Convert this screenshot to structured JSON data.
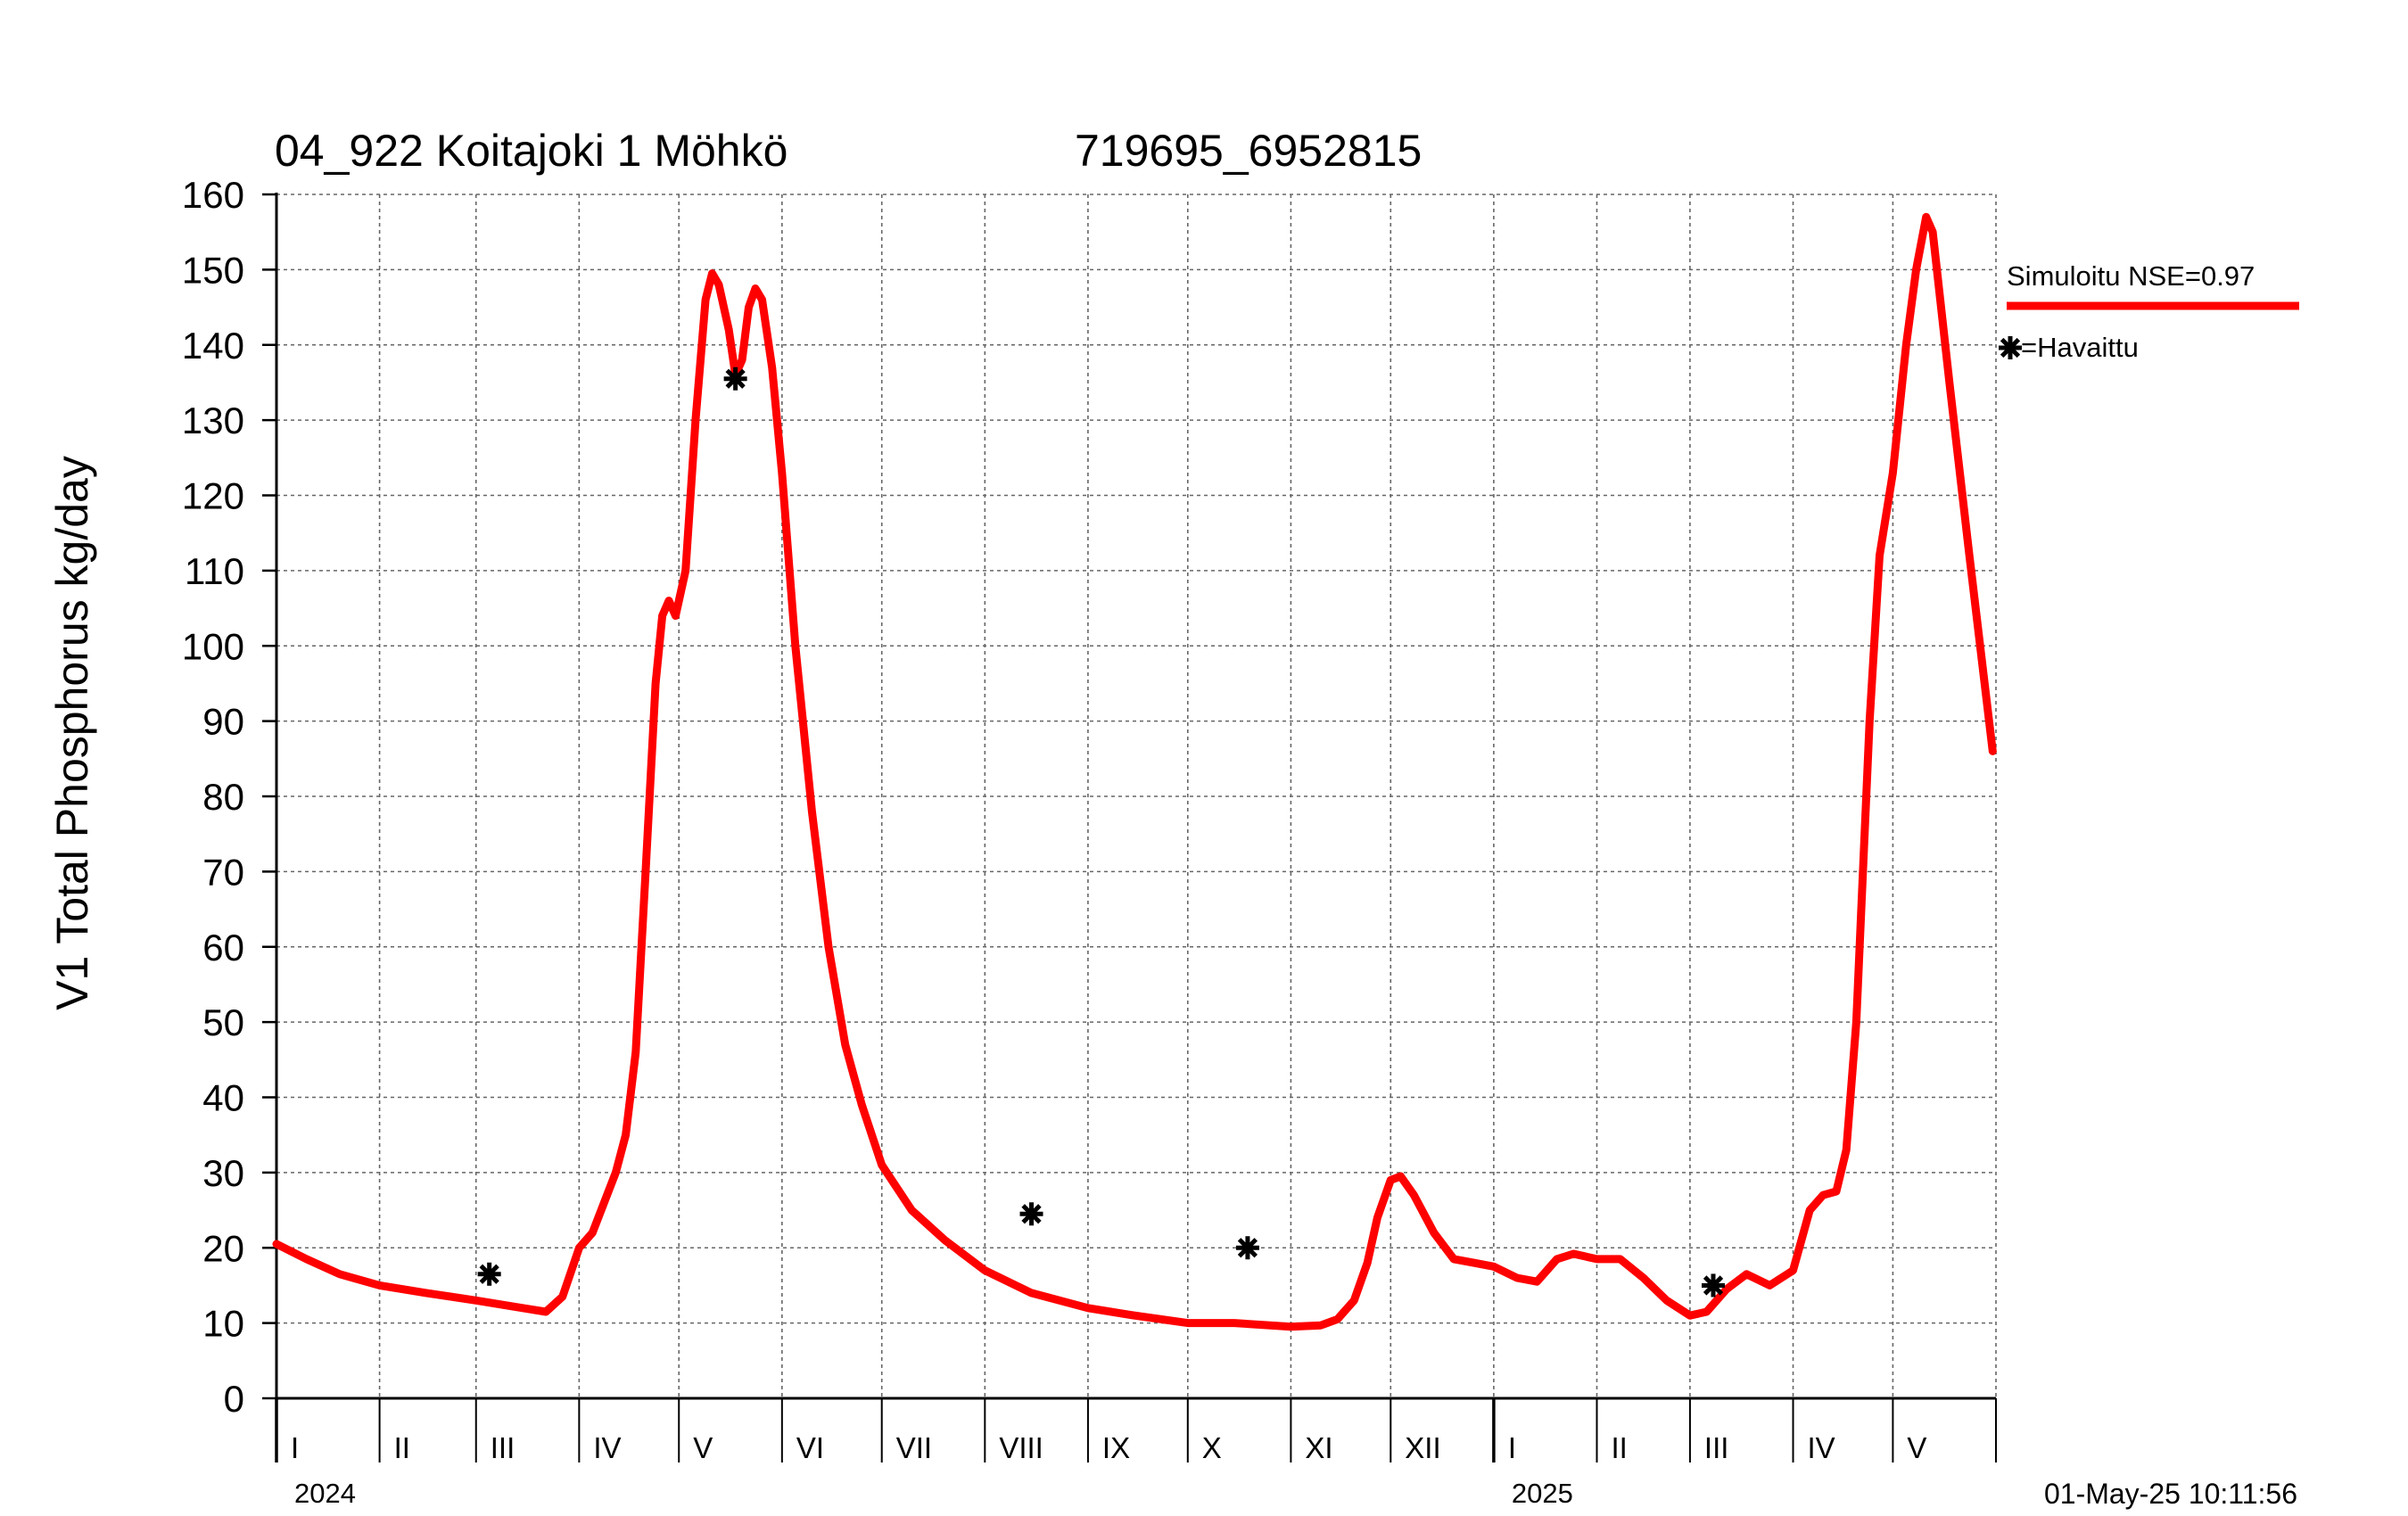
{
  "chart_data": {
    "type": "line",
    "title": "04_922 Koitajoki 1 Möhkö",
    "subtitle": "719695_6952815",
    "ylabel": "V1 Total Phosphorus kg/day",
    "xlabel": "",
    "ylim": [
      0,
      160
    ],
    "yticks": [
      0,
      10,
      20,
      30,
      40,
      50,
      60,
      70,
      80,
      90,
      100,
      110,
      120,
      130,
      140,
      150,
      160
    ],
    "xlim": [
      "2024-01-01",
      "2025-05-31"
    ],
    "grid": true,
    "legend_position": "right",
    "months": [
      {
        "label": "I",
        "start": "2024-01-01"
      },
      {
        "label": "II",
        "start": "2024-02-01"
      },
      {
        "label": "III",
        "start": "2024-03-01"
      },
      {
        "label": "IV",
        "start": "2024-04-01"
      },
      {
        "label": "V",
        "start": "2024-05-01"
      },
      {
        "label": "VI",
        "start": "2024-06-01"
      },
      {
        "label": "VII",
        "start": "2024-07-01"
      },
      {
        "label": "VIII",
        "start": "2024-08-01"
      },
      {
        "label": "IX",
        "start": "2024-09-01"
      },
      {
        "label": "X",
        "start": "2024-10-01"
      },
      {
        "label": "XI",
        "start": "2024-11-01"
      },
      {
        "label": "XII",
        "start": "2024-12-01"
      },
      {
        "label": "I",
        "start": "2025-01-01"
      },
      {
        "label": "II",
        "start": "2025-02-01"
      },
      {
        "label": "III",
        "start": "2025-03-01"
      },
      {
        "label": "IV",
        "start": "2025-04-01"
      },
      {
        "label": "V",
        "start": "2025-05-01"
      }
    ],
    "years": [
      {
        "label": "2024",
        "start": "2024-01-01"
      },
      {
        "label": "2025",
        "start": "2025-01-01"
      }
    ],
    "series": [
      {
        "name": "Simuloitu NSE=0.97",
        "color": "#ff0000",
        "kind": "line",
        "points": [
          [
            "2024-01-01",
            20.5
          ],
          [
            "2024-01-10",
            18.5
          ],
          [
            "2024-01-20",
            16.5
          ],
          [
            "2024-02-01",
            15.0
          ],
          [
            "2024-02-15",
            14.0
          ],
          [
            "2024-03-01",
            13.0
          ],
          [
            "2024-03-15",
            12.0
          ],
          [
            "2024-03-22",
            11.5
          ],
          [
            "2024-03-27",
            13.5
          ],
          [
            "2024-04-01",
            20.0
          ],
          [
            "2024-04-05",
            22.0
          ],
          [
            "2024-04-12",
            30.0
          ],
          [
            "2024-04-15",
            35.0
          ],
          [
            "2024-04-18",
            46.0
          ],
          [
            "2024-04-21",
            70.0
          ],
          [
            "2024-04-24",
            95.0
          ],
          [
            "2024-04-26",
            104.0
          ],
          [
            "2024-04-28",
            106.0
          ],
          [
            "2024-04-30",
            104.0
          ],
          [
            "2024-05-03",
            110.0
          ],
          [
            "2024-05-06",
            130.0
          ],
          [
            "2024-05-09",
            146.0
          ],
          [
            "2024-05-11",
            149.5
          ],
          [
            "2024-05-13",
            148.0
          ],
          [
            "2024-05-16",
            142.0
          ],
          [
            "2024-05-18",
            136.0
          ],
          [
            "2024-05-20",
            138.0
          ],
          [
            "2024-05-22",
            145.0
          ],
          [
            "2024-05-24",
            147.5
          ],
          [
            "2024-05-26",
            146.0
          ],
          [
            "2024-05-29",
            137.0
          ],
          [
            "2024-06-01",
            123.0
          ],
          [
            "2024-06-05",
            100.0
          ],
          [
            "2024-06-10",
            78.0
          ],
          [
            "2024-06-15",
            60.0
          ],
          [
            "2024-06-20",
            47.0
          ],
          [
            "2024-06-25",
            39.0
          ],
          [
            "2024-07-01",
            31.0
          ],
          [
            "2024-07-10",
            25.0
          ],
          [
            "2024-07-20",
            21.0
          ],
          [
            "2024-08-01",
            17.0
          ],
          [
            "2024-08-15",
            14.0
          ],
          [
            "2024-09-01",
            12.0
          ],
          [
            "2024-09-15",
            11.0
          ],
          [
            "2024-10-01",
            10.0
          ],
          [
            "2024-10-15",
            10.0
          ],
          [
            "2024-11-01",
            9.5
          ],
          [
            "2024-11-10",
            9.7
          ],
          [
            "2024-11-15",
            10.5
          ],
          [
            "2024-11-20",
            13.0
          ],
          [
            "2024-11-24",
            18.0
          ],
          [
            "2024-11-27",
            24.0
          ],
          [
            "2024-12-01",
            29.0
          ],
          [
            "2024-12-04",
            29.5
          ],
          [
            "2024-12-08",
            27.0
          ],
          [
            "2024-12-14",
            22.0
          ],
          [
            "2024-12-20",
            18.5
          ],
          [
            "2024-12-26",
            18.0
          ],
          [
            "2025-01-01",
            17.5
          ],
          [
            "2025-01-08",
            16.0
          ],
          [
            "2025-01-14",
            15.5
          ],
          [
            "2025-01-20",
            18.5
          ],
          [
            "2025-01-25",
            19.2
          ],
          [
            "2025-02-01",
            18.5
          ],
          [
            "2025-02-08",
            18.5
          ],
          [
            "2025-02-15",
            16.0
          ],
          [
            "2025-02-22",
            13.0
          ],
          [
            "2025-03-01",
            11.0
          ],
          [
            "2025-03-06",
            11.5
          ],
          [
            "2025-03-12",
            14.5
          ],
          [
            "2025-03-18",
            16.5
          ],
          [
            "2025-03-25",
            15.0
          ],
          [
            "2025-04-01",
            17.0
          ],
          [
            "2025-04-06",
            25.0
          ],
          [
            "2025-04-10",
            27.0
          ],
          [
            "2025-04-14",
            27.5
          ],
          [
            "2025-04-17",
            33.0
          ],
          [
            "2025-04-20",
            50.0
          ],
          [
            "2025-04-24",
            90.0
          ],
          [
            "2025-04-27",
            112.0
          ],
          [
            "2025-05-01",
            123.0
          ],
          [
            "2025-05-05",
            140.0
          ],
          [
            "2025-05-08",
            150.0
          ],
          [
            "2025-05-11",
            157.0
          ],
          [
            "2025-05-13",
            155.0
          ],
          [
            "2025-05-18",
            135.0
          ],
          [
            "2025-05-24",
            112.0
          ],
          [
            "2025-05-31",
            86.0
          ]
        ]
      },
      {
        "name": "=Havaittu",
        "color": "#000000",
        "kind": "marker",
        "marker": "asterisk",
        "points": [
          [
            "2024-03-05",
            16.5
          ],
          [
            "2024-05-18",
            135.5
          ],
          [
            "2024-08-15",
            24.5
          ],
          [
            "2024-10-19",
            20.0
          ],
          [
            "2025-03-08",
            15.0
          ]
        ]
      }
    ],
    "timestamp": "01-May-25 10:11:56"
  }
}
